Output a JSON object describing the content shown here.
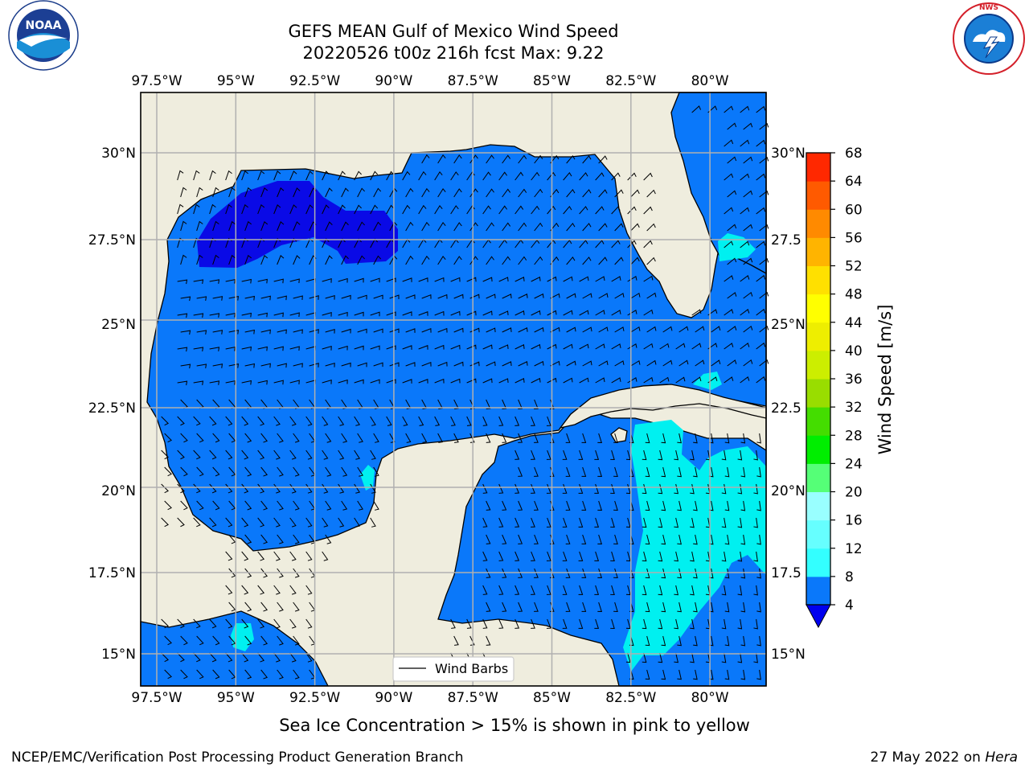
{
  "header": {
    "title_line1": "GEFS MEAN Gulf of Mexico Wind Speed",
    "title_line2": "20220526 t00z 216h fcst   Max: 9.22"
  },
  "logos": {
    "noaa": {
      "text": "NOAA",
      "ring_text": "NATIONAL OCEANIC AND ATMOSPHERIC ADMINISTRATION · U.S. DEPARTMENT OF COMMERCE"
    },
    "nws": {
      "ring_text": "NATIONAL WEATHER SERVICE"
    }
  },
  "map": {
    "lon_labels": [
      "97.5°W",
      "95°W",
      "92.5°W",
      "90°W",
      "87.5°W",
      "85°W",
      "82.5°W",
      "80°W"
    ],
    "lat_labels_left": [
      "30°N",
      "27.5°N",
      "25°N",
      "22.5°N",
      "20°N",
      "17.5°N",
      "15°N"
    ],
    "lat_labels_right": [
      "30°N",
      "27.5",
      "25°N",
      "22.5",
      "20°N",
      "17.5",
      "15°N"
    ],
    "legend_label": "Wind Barbs",
    "colors": {
      "land": "#efedde",
      "ocean_4_8": "#0a78fa",
      "ocean_lt4": "#0a0ae6",
      "ocean_8_12": "#00f0f0",
      "grid": "#b0b0b0"
    }
  },
  "colorbar": {
    "label": "Wind Speed [m/s]",
    "ticks": [
      "4",
      "8",
      "12",
      "16",
      "20",
      "24",
      "28",
      "32",
      "36",
      "40",
      "44",
      "48",
      "52",
      "56",
      "60",
      "64",
      "68"
    ],
    "colors": [
      "#0a78fa",
      "#00ffff",
      "#33ffff",
      "#66ffff",
      "#99ffff",
      "#55ff77",
      "#00ee00",
      "#44dd00",
      "#99dd00",
      "#ccee00",
      "#eeee00",
      "#ffff00",
      "#ffe000",
      "#ffb400",
      "#ff8a00",
      "#ff5a00",
      "#ff2800",
      "#ff0000"
    ],
    "underflow_color": "#0000ee"
  },
  "caption": "Sea Ice Concentration > 15% is shown in pink to yellow",
  "footer": {
    "left": "NCEP/EMC/Verification Post Processing Product Generation Branch",
    "right_prefix": "27 May 2022 on ",
    "right_machine": "Hera"
  }
}
